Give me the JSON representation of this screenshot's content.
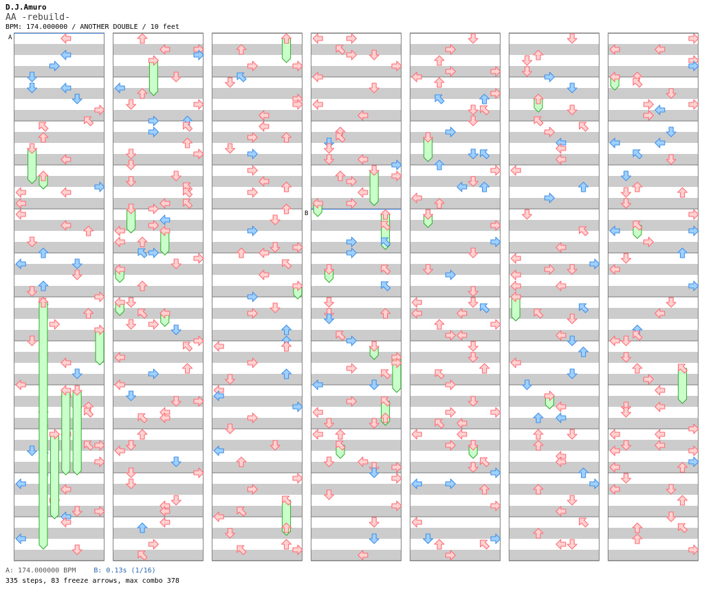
{
  "header": {
    "artist": "D.J.Amuro",
    "title": "AA -rebuild-",
    "meta": "BPM: 174.000000 / ANOTHER DOUBLE / 10 feet"
  },
  "markers": {
    "a": "A",
    "b": "B"
  },
  "footer": {
    "bpm_a": "A: 174.000000 BPM",
    "stop_b": "B: 0.13s (1/16)",
    "stats": "335 steps, 83 freeze arrows, max combo 378"
  },
  "colors": {
    "red": "#ff6b74",
    "red_fill": "#ffd2d2",
    "blue": "#3f8fe6",
    "blue_fill": "#9fd0ff",
    "freeze": "#2faa2f",
    "freeze_fill": "#c9ffc9",
    "stripe": "#cccccc",
    "marker_line": "#3f7fd9"
  }
}
